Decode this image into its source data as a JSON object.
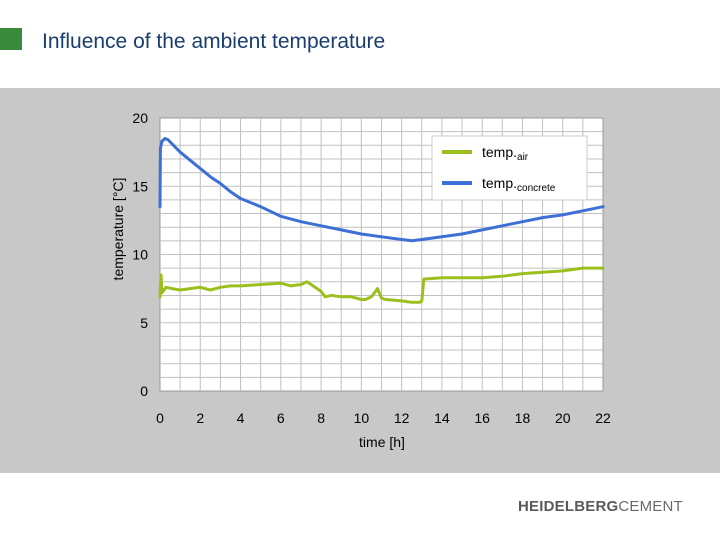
{
  "slide": {
    "title": "Influence of the ambient temperature",
    "logo_bold": "HEIDELBERG",
    "logo_light": "CEMENT"
  },
  "colors": {
    "title": "#1a3d6e",
    "accent_square": "#3a8a3c",
    "panel": "#c8c8c8",
    "plot": "#ffffff",
    "grid": "#c0c0c0",
    "air": "#9cbf1e",
    "concrete": "#3d6fd6"
  },
  "chart_data": {
    "type": "line",
    "xlabel": "time [h]",
    "ylabel": "temperature [°C]",
    "xlim": [
      0,
      22
    ],
    "ylim": [
      0,
      20
    ],
    "xticks": [
      0,
      2,
      4,
      6,
      8,
      10,
      12,
      14,
      16,
      18,
      20,
      22
    ],
    "yticks": [
      0,
      5,
      10,
      15,
      20
    ],
    "grid": true,
    "legend_position": "top-right",
    "series": [
      {
        "name": "temp.air",
        "name_main": "temp.",
        "name_sub": "air",
        "color": "#9cbf1e",
        "x": [
          0,
          0.05,
          0.1,
          0.3,
          0.6,
          1.0,
          1.5,
          2.0,
          2.5,
          3.0,
          3.5,
          4.0,
          5.0,
          6.0,
          6.5,
          7.0,
          7.3,
          7.8,
          8.0,
          8.2,
          8.5,
          9.0,
          9.5,
          10.0,
          10.2,
          10.5,
          10.8,
          11.0,
          11.2,
          12.0,
          12.5,
          12.9,
          13.0,
          13.1,
          14.0,
          15.0,
          16.0,
          17.0,
          18.0,
          19.0,
          20.0,
          21.0,
          22.0
        ],
        "y": [
          6.9,
          8.5,
          7.2,
          7.6,
          7.5,
          7.4,
          7.5,
          7.6,
          7.4,
          7.6,
          7.7,
          7.7,
          7.8,
          7.9,
          7.7,
          7.8,
          8.0,
          7.5,
          7.3,
          6.9,
          7.0,
          6.9,
          6.9,
          6.7,
          6.7,
          6.9,
          7.5,
          6.8,
          6.7,
          6.6,
          6.5,
          6.5,
          6.6,
          8.2,
          8.3,
          8.3,
          8.3,
          8.4,
          8.6,
          8.7,
          8.8,
          9.0,
          9.0
        ]
      },
      {
        "name": "temp.concrete",
        "name_main": "temp.",
        "name_sub": "concrete",
        "color": "#3d6fd6",
        "x": [
          0,
          0.02,
          0.1,
          0.25,
          0.4,
          0.6,
          1.0,
          1.5,
          2.0,
          2.5,
          3.0,
          3.5,
          4.0,
          5.0,
          6.0,
          7.0,
          8.0,
          9.0,
          10.0,
          11.0,
          12.0,
          12.5,
          13.0,
          13.5,
          14.0,
          15.0,
          16.0,
          17.0,
          18.0,
          19.0,
          20.0,
          21.0,
          22.0
        ],
        "y": [
          13.5,
          17.8,
          18.3,
          18.5,
          18.4,
          18.1,
          17.5,
          16.9,
          16.3,
          15.7,
          15.2,
          14.6,
          14.1,
          13.5,
          12.8,
          12.4,
          12.1,
          11.8,
          11.5,
          11.3,
          11.1,
          11.0,
          11.1,
          11.2,
          11.3,
          11.5,
          11.8,
          12.1,
          12.4,
          12.7,
          12.9,
          13.2,
          13.5
        ]
      }
    ]
  }
}
